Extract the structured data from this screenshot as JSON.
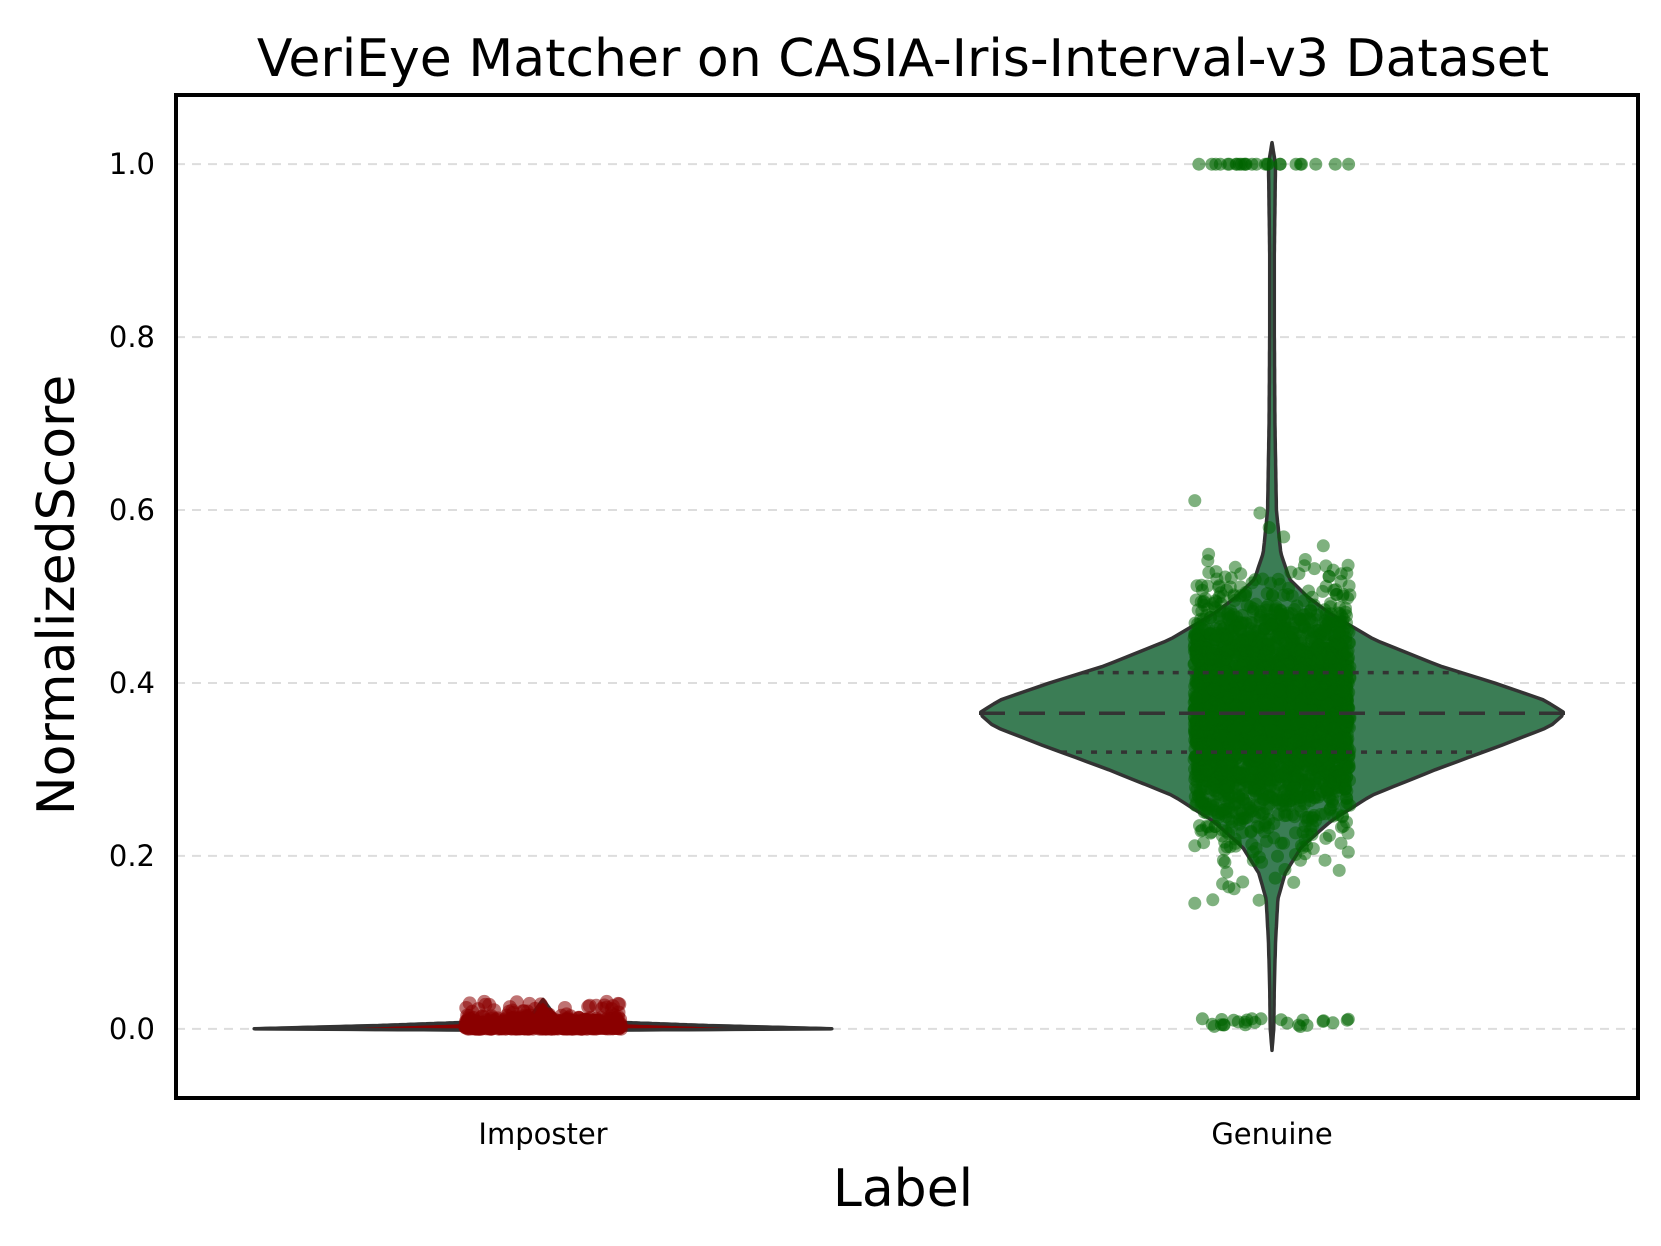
{
  "chart_data": {
    "type": "violin",
    "title": "VeriEye Matcher on CASIA-Iris-Interval-v3 Dataset",
    "xlabel": "Label",
    "ylabel": "NormalizedScore",
    "categories": [
      "Imposter",
      "Genuine"
    ],
    "ylim": [
      -0.08,
      1.08
    ],
    "yticks": [
      0.0,
      0.2,
      0.4,
      0.6,
      0.8,
      1.0
    ],
    "ytick_labels": [
      "0.0",
      "0.2",
      "0.4",
      "0.6",
      "0.8",
      "1.0"
    ],
    "grid": "horizontal dashed",
    "series": [
      {
        "category": "Imposter",
        "color": "#8b0000",
        "violin_fill": "#8b0000",
        "median": 0.0,
        "q1": 0.0,
        "q3": 0.0,
        "points_range": [
          0.0,
          0.035
        ],
        "density_profile": [
          [
            -0.002,
            0.0
          ],
          [
            0.0,
            1.0
          ],
          [
            0.004,
            0.55
          ],
          [
            0.01,
            0.06
          ],
          [
            0.02,
            0.03
          ],
          [
            0.034,
            0.0
          ]
        ]
      },
      {
        "category": "Genuine",
        "color": "#006400",
        "violin_fill": "#3b7d55",
        "median": 0.365,
        "q1": 0.32,
        "q3": 0.412,
        "points_range": [
          0.0,
          1.0
        ],
        "density_profile": [
          [
            -0.025,
            0.0
          ],
          [
            0.0,
            0.006
          ],
          [
            0.05,
            0.008
          ],
          [
            0.1,
            0.012
          ],
          [
            0.15,
            0.02
          ],
          [
            0.18,
            0.045
          ],
          [
            0.21,
            0.1
          ],
          [
            0.24,
            0.2
          ],
          [
            0.27,
            0.34
          ],
          [
            0.3,
            0.56
          ],
          [
            0.33,
            0.8
          ],
          [
            0.35,
            0.95
          ],
          [
            0.365,
            1.0
          ],
          [
            0.38,
            0.93
          ],
          [
            0.4,
            0.76
          ],
          [
            0.42,
            0.57
          ],
          [
            0.45,
            0.35
          ],
          [
            0.48,
            0.2
          ],
          [
            0.5,
            0.12
          ],
          [
            0.52,
            0.06
          ],
          [
            0.55,
            0.03
          ],
          [
            0.6,
            0.015
          ],
          [
            0.7,
            0.01
          ],
          [
            0.8,
            0.008
          ],
          [
            0.9,
            0.008
          ],
          [
            1.0,
            0.012
          ],
          [
            1.025,
            0.0
          ]
        ]
      }
    ]
  }
}
